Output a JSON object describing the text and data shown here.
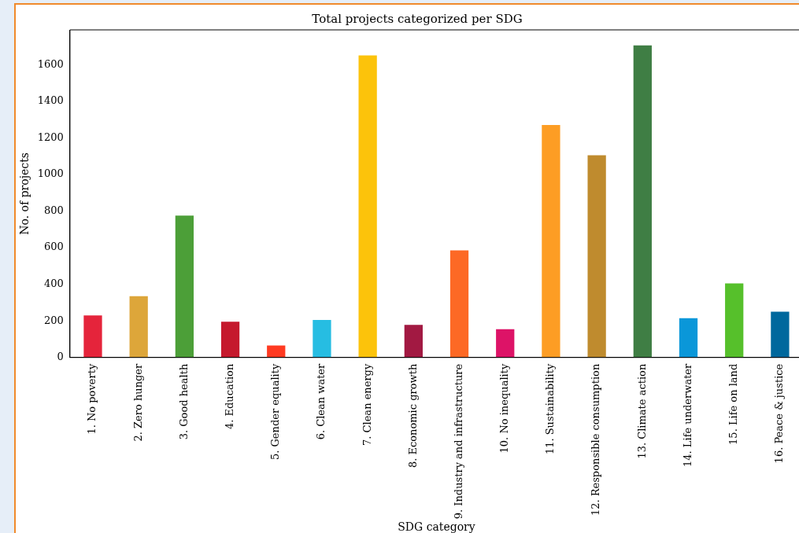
{
  "chart_data": {
    "type": "bar",
    "title": "Total projects categorized per SDG",
    "xlabel": "SDG category",
    "ylabel": "No. of projects",
    "categories": [
      "1. No poverty",
      "2. Zero hunger",
      "3. Good health",
      "4. Education",
      "5. Gender equality",
      "6. Clean water",
      "7. Clean energy",
      "8. Economic growth",
      "9. Industry and infrastructure",
      "10. No inequality",
      "11. Sustainability",
      "12. Responsible consumption",
      "13. Climate action",
      "14. Life underwater",
      "15. Life on land",
      "16. Peace & justice"
    ],
    "values": [
      230,
      335,
      775,
      195,
      65,
      205,
      1650,
      178,
      585,
      155,
      1270,
      1105,
      1705,
      215,
      405,
      250
    ],
    "colors": [
      "#e5243b",
      "#dda63a",
      "#4c9f38",
      "#c5192d",
      "#ff3a21",
      "#26bde2",
      "#fcc30b",
      "#a21942",
      "#fd6925",
      "#dd1367",
      "#fd9d24",
      "#bf8b2e",
      "#3f7e44",
      "#0a97d9",
      "#56c02b",
      "#00689d"
    ],
    "ylim": [
      0,
      1790
    ],
    "yticks": [
      0,
      200,
      400,
      600,
      800,
      1000,
      1200,
      1400,
      1600
    ],
    "grid": false,
    "legend": false
  }
}
